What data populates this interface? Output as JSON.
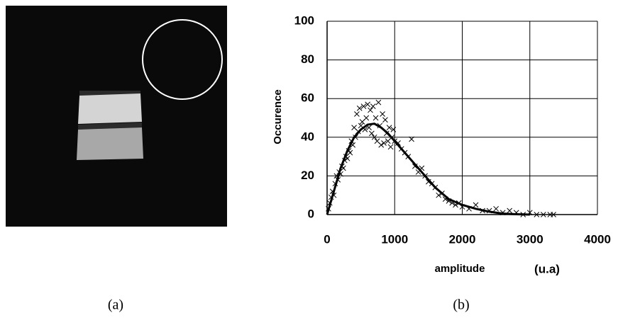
{
  "chart_data": {
    "type": "scatter",
    "y_label": "Occurence",
    "x_label": "amplitude",
    "x_unit": "(u.a)",
    "xlim": [
      0,
      4000
    ],
    "xticks": [
      0,
      1000,
      2000,
      3000,
      4000
    ],
    "ylim": [
      0,
      100
    ],
    "yticks": [
      0,
      20,
      40,
      60,
      80,
      100
    ],
    "grid": true,
    "series": [
      {
        "type": "scatter",
        "color": "#000000",
        "x": [
          20,
          40,
          60,
          80,
          100,
          120,
          140,
          160,
          180,
          200,
          220,
          240,
          260,
          280,
          300,
          320,
          340,
          360,
          380,
          400,
          420,
          440,
          460,
          480,
          500,
          520,
          540,
          560,
          580,
          600,
          620,
          640,
          660,
          680,
          700,
          720,
          740,
          760,
          780,
          800,
          820,
          840,
          860,
          880,
          900,
          920,
          940,
          960,
          980,
          1000,
          1050,
          1100,
          1150,
          1200,
          1250,
          1300,
          1350,
          1400,
          1450,
          1500,
          1550,
          1600,
          1650,
          1700,
          1750,
          1800,
          1850,
          1900,
          1950,
          2000,
          2100,
          2200,
          2300,
          2400,
          2500,
          2600,
          2700,
          2800,
          2900,
          3000,
          3100,
          3200,
          3300,
          3350
        ],
        "values": [
          3,
          6,
          9,
          12,
          10,
          16,
          20,
          18,
          22,
          21,
          25,
          24,
          28,
          30,
          29,
          33,
          32,
          38,
          36,
          45,
          40,
          52,
          43,
          55,
          46,
          48,
          56,
          44,
          50,
          57,
          45,
          54,
          42,
          56,
          40,
          50,
          38,
          58,
          46,
          36,
          52,
          37,
          49,
          42,
          38,
          45,
          35,
          40,
          44,
          38,
          37,
          34,
          32,
          30,
          39,
          25,
          22,
          24,
          20,
          17,
          16,
          14,
          10,
          11,
          8,
          7,
          6,
          5,
          6,
          4,
          3,
          5,
          2,
          2,
          3,
          1,
          2,
          1,
          0,
          1,
          0,
          0,
          0,
          0
        ]
      },
      {
        "type": "line",
        "color": "#000000",
        "x": [
          0,
          100,
          200,
          300,
          400,
          500,
          600,
          700,
          800,
          900,
          1000,
          1200,
          1400,
          1600,
          1800,
          2000,
          2200,
          2400,
          2600,
          2800,
          3000
        ],
        "values": [
          0,
          12,
          24,
          33,
          40,
          44,
          46.5,
          47,
          45,
          42,
          38,
          30,
          22,
          14,
          8,
          5,
          3,
          1.5,
          0.5,
          0.2,
          0
        ]
      }
    ]
  },
  "captions": [
    "(a)",
    "(b)"
  ]
}
